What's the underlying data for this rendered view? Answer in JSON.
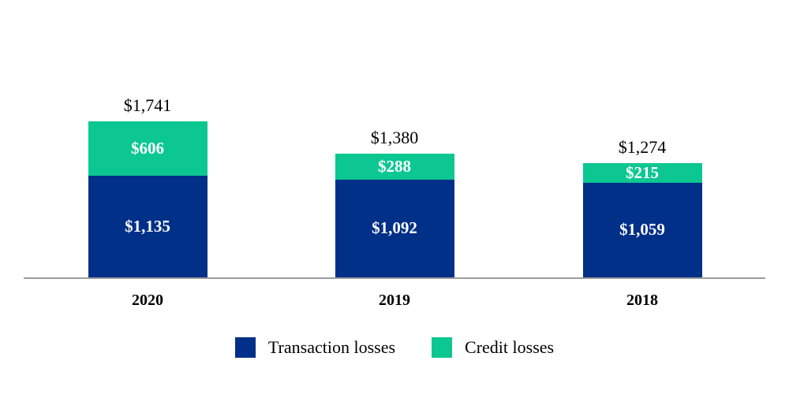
{
  "chart_data": {
    "type": "bar",
    "stacked": true,
    "title": "",
    "xlabel": "",
    "ylabel": "",
    "categories": [
      "2020",
      "2019",
      "2018"
    ],
    "series": [
      {
        "name": "Transaction losses",
        "color": "#003087",
        "values": [
          1135,
          1092,
          1059
        ],
        "value_labels": [
          "$1,135",
          "$1,092",
          "$1,059"
        ]
      },
      {
        "name": "Credit losses",
        "color": "#0cc792",
        "values": [
          606,
          288,
          215
        ],
        "value_labels": [
          "$606",
          "$288",
          "$215"
        ]
      }
    ],
    "totals": [
      1741,
      1380,
      1274
    ],
    "total_labels": [
      "$1,741",
      "$1,380",
      "$1,274"
    ],
    "legend_position": "bottom",
    "grid": false,
    "axis_line_color": "#9c9c9c",
    "value_label_color": "#ffffff",
    "text_color": "#000000"
  }
}
